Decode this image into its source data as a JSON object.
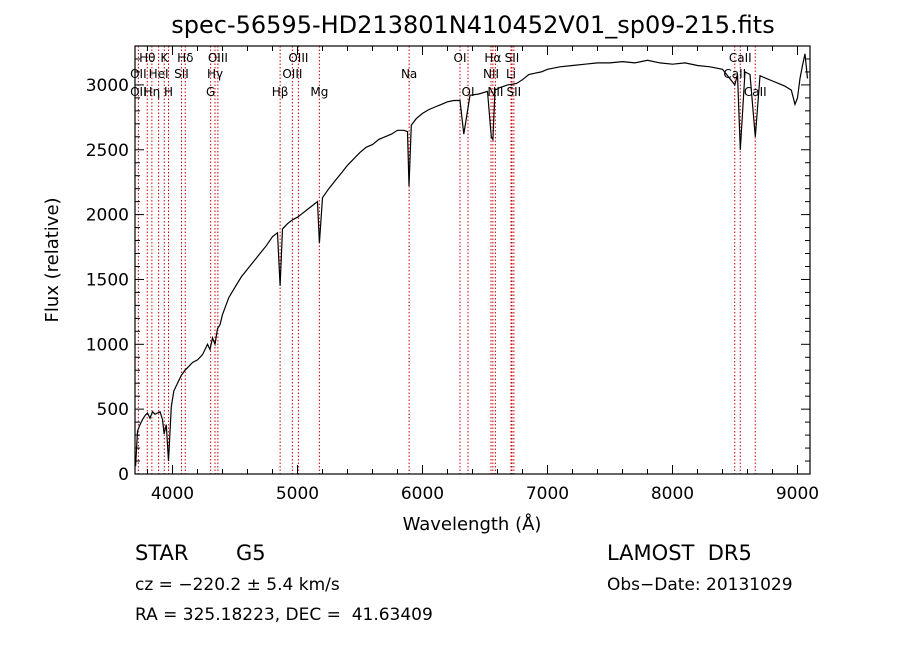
{
  "chart_data": {
    "type": "line",
    "title": "spec-56595-HD213801N410452V01_sp09-215.fits",
    "xlabel": "Wavelength (Å)",
    "ylabel": "Flux (relative)",
    "xlim": [
      3700,
      9100
    ],
    "ylim": [
      0,
      3300
    ],
    "xticks": [
      4000,
      5000,
      6000,
      7000,
      8000,
      9000
    ],
    "yticks": [
      0,
      500,
      1000,
      1500,
      2000,
      2500,
      3000
    ],
    "grid": false,
    "line_color": "#000000",
    "marker_color": "#cc0000",
    "series": [
      {
        "x": [
          3705,
          3720,
          3740,
          3760,
          3780,
          3800,
          3820,
          3840,
          3860,
          3880,
          3900,
          3920,
          3933,
          3950,
          3968,
          3990,
          4010,
          4040,
          4070,
          4100,
          4130,
          4160,
          4200,
          4240,
          4280,
          4300,
          4320,
          4340,
          4360,
          4380,
          4400,
          4450,
          4500,
          4550,
          4600,
          4650,
          4700,
          4750,
          4800,
          4840,
          4861,
          4880,
          4920,
          4960,
          5000,
          5040,
          5080,
          5120,
          5160,
          5175,
          5200,
          5250,
          5300,
          5350,
          5400,
          5450,
          5500,
          5550,
          5600,
          5650,
          5700,
          5750,
          5800,
          5850,
          5880,
          5892,
          5910,
          5950,
          6000,
          6050,
          6100,
          6150,
          6200,
          6250,
          6300,
          6330,
          6380,
          6450,
          6520,
          6550,
          6563,
          6580,
          6620,
          6680,
          6750,
          6800,
          6850,
          6900,
          6950,
          7000,
          7100,
          7200,
          7300,
          7400,
          7500,
          7600,
          7700,
          7800,
          7900,
          8000,
          8100,
          8200,
          8300,
          8400,
          8498,
          8520,
          8542,
          8580,
          8620,
          8662,
          8700,
          8750,
          8800,
          8850,
          8900,
          8950,
          8980,
          9000,
          9020,
          9040,
          9060,
          9080
        ],
        "y": [
          60,
          330,
          380,
          420,
          450,
          470,
          430,
          480,
          460,
          470,
          480,
          420,
          310,
          380,
          100,
          520,
          640,
          700,
          760,
          800,
          830,
          860,
          880,
          920,
          1000,
          960,
          1050,
          1000,
          1120,
          1150,
          1230,
          1360,
          1440,
          1520,
          1580,
          1640,
          1700,
          1760,
          1830,
          1860,
          1450,
          1890,
          1930,
          1960,
          1980,
          2010,
          2040,
          2070,
          2100,
          1780,
          2130,
          2200,
          2260,
          2320,
          2380,
          2430,
          2480,
          2520,
          2540,
          2580,
          2600,
          2620,
          2650,
          2650,
          2640,
          2220,
          2690,
          2740,
          2780,
          2810,
          2830,
          2850,
          2870,
          2880,
          2880,
          2620,
          2920,
          2930,
          2950,
          2600,
          2580,
          2960,
          2980,
          3000,
          3010,
          3040,
          3080,
          3090,
          3100,
          3120,
          3140,
          3150,
          3160,
          3170,
          3170,
          3180,
          3170,
          3190,
          3170,
          3160,
          3170,
          3150,
          3140,
          3120,
          3000,
          3080,
          2500,
          3100,
          3080,
          2600,
          3070,
          3050,
          3030,
          3010,
          2990,
          2960,
          2850,
          2900,
          3050,
          3150,
          3240,
          3050
        ]
      }
    ],
    "line_markers": [
      {
        "label": "Hθ",
        "x": 3798,
        "row": 1
      },
      {
        "label": "OII",
        "x": 3727,
        "row": 2
      },
      {
        "label": "OII",
        "x": 3727,
        "row": 3
      },
      {
        "label": "Hη",
        "x": 3835,
        "row": 3
      },
      {
        "label": "HeI",
        "x": 3889,
        "row": 2
      },
      {
        "label": "K",
        "x": 3934,
        "row": 1
      },
      {
        "label": "H",
        "x": 3968,
        "row": 3
      },
      {
        "label": "Hδ",
        "x": 4102,
        "row": 1
      },
      {
        "label": "SII",
        "x": 4072,
        "row": 2
      },
      {
        "label": "OIII",
        "x": 4363,
        "row": 1
      },
      {
        "label": "Hγ",
        "x": 4340,
        "row": 2
      },
      {
        "label": "G",
        "x": 4305,
        "row": 3
      },
      {
        "label": "Hβ",
        "x": 4861,
        "row": 3
      },
      {
        "label": "OIII",
        "x": 5007,
        "row": 1
      },
      {
        "label": "OIII",
        "x": 4959,
        "row": 2
      },
      {
        "label": "Mg",
        "x": 5175,
        "row": 3
      },
      {
        "label": "Na",
        "x": 5893,
        "row": 2
      },
      {
        "label": "OI",
        "x": 6300,
        "row": 1
      },
      {
        "label": "OI",
        "x": 6364,
        "row": 3
      },
      {
        "label": "Hα",
        "x": 6563,
        "row": 1
      },
      {
        "label": "NII",
        "x": 6548,
        "row": 2
      },
      {
        "label": "NII",
        "x": 6583,
        "row": 3
      },
      {
        "label": "SII",
        "x": 6716,
        "row": 1
      },
      {
        "label": "Li",
        "x": 6708,
        "row": 2
      },
      {
        "label": "SII",
        "x": 6731,
        "row": 3
      },
      {
        "label": "CaII",
        "x": 8542,
        "row": 1
      },
      {
        "label": "CaII",
        "x": 8498,
        "row": 2
      },
      {
        "label": "CaII",
        "x": 8662,
        "row": 3
      }
    ],
    "footer": {
      "object_class": "STAR",
      "subclass": "G5",
      "survey": "LAMOST  DR5",
      "redshift": "cz = −220.2 ± 5.4 km/s",
      "obs_date": "Obs−Date: 20131029",
      "coords": "RA = 325.18223, DEC =  41.63409"
    }
  }
}
